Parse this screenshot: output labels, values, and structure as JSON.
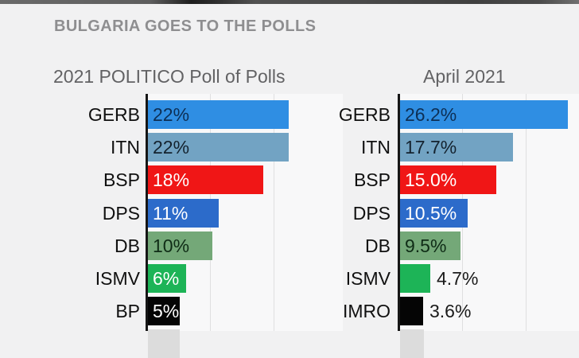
{
  "header": {
    "title": "BULGARIA GOES TO THE POLLS"
  },
  "colors": {
    "page_background": "#f1f1f2",
    "plot_background": "#f8f8f9",
    "axis": "#161616",
    "gridline": "#dfdfe0",
    "title_text": "#8e8e90",
    "subtitle_text": "#626264",
    "label_text": "#101010",
    "cutoff_bar": "#dcdcdc"
  },
  "chart_data": [
    {
      "type": "bar",
      "orientation": "horizontal",
      "title": "2021 POLITICO Poll of Polls",
      "categories": [
        "GERB",
        "ITN",
        "BSP",
        "DPS",
        "DB",
        "ISMV",
        "BP"
      ],
      "values": [
        22,
        22,
        18,
        11,
        10,
        6,
        5
      ],
      "value_labels": [
        "22%",
        "22%",
        "18%",
        "11%",
        "10%",
        "6%",
        "5%"
      ],
      "bar_colors": [
        "#2f8ee3",
        "#72a3c3",
        "#f01616",
        "#2c6bca",
        "#74a878",
        "#1db457",
        "#050505"
      ],
      "value_text_colors": [
        "#0d2f55",
        "#14222e",
        "#ffffff",
        "#ffffff",
        "#0f2c16",
        "#ffffff",
        "#ffffff"
      ],
      "value_label_position": [
        "inside",
        "inside",
        "inside",
        "inside",
        "inside",
        "inside",
        "inside"
      ],
      "xlim": [
        0,
        30
      ],
      "gridlines_pct": [
        10,
        20
      ],
      "grid": true,
      "legend": false,
      "next_bar_cut_off": true
    },
    {
      "type": "bar",
      "orientation": "horizontal",
      "title": "April 2021",
      "categories": [
        "GERB",
        "ITN",
        "BSP",
        "DPS",
        "DB",
        "ISMV",
        "IMRO"
      ],
      "values": [
        26.2,
        17.7,
        15.0,
        10.5,
        9.5,
        4.7,
        3.6
      ],
      "value_labels": [
        "26.2%",
        "17.7%",
        "15.0%",
        "10.5%",
        "9.5%",
        "4.7%",
        "3.6%"
      ],
      "bar_colors": [
        "#2f8ee3",
        "#72a3c3",
        "#f01616",
        "#2c6bca",
        "#74a878",
        "#1db457",
        "#050505"
      ],
      "value_text_colors": [
        "#0d2f55",
        "#14222e",
        "#ffffff",
        "#ffffff",
        "#0f2c16",
        "#1b1b1b",
        "#1b1b1b"
      ],
      "value_label_position": [
        "inside",
        "inside",
        "inside",
        "inside",
        "inside",
        "outside",
        "outside"
      ],
      "xlim": [
        0,
        30
      ],
      "gridlines_pct": [
        10,
        20
      ],
      "grid": true,
      "legend": false,
      "next_bar_cut_off": true
    }
  ]
}
